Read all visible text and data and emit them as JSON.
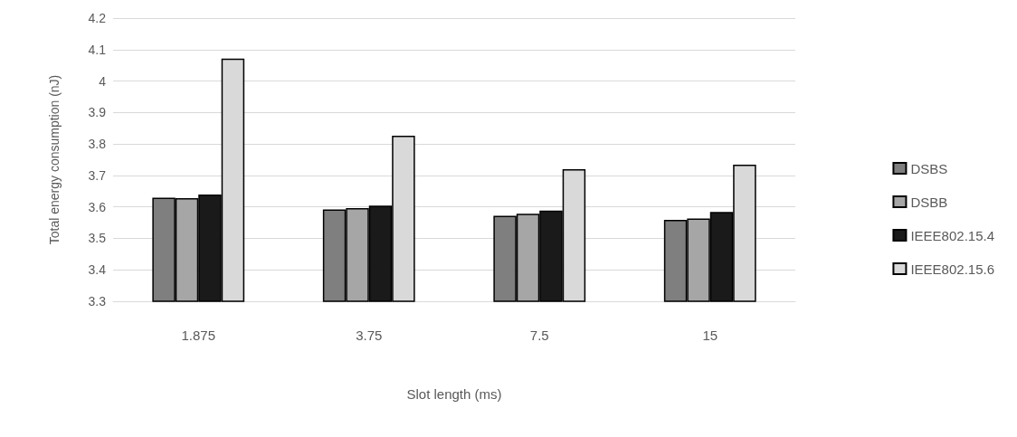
{
  "chart_data": {
    "type": "bar",
    "xlabel": "Slot length (ms)",
    "ylabel": "Total energy consumption (nJ)",
    "categories": [
      "1.875",
      "3.75",
      "7.5",
      "15"
    ],
    "series": [
      {
        "name": "DSBS",
        "color": "#7f7f7f",
        "values": [
          3.629,
          3.592,
          3.572,
          3.559
        ]
      },
      {
        "name": "DSBB",
        "color": "#a6a6a6",
        "values": [
          3.628,
          3.596,
          3.578,
          3.563
        ]
      },
      {
        "name": "IEEE802.15.4",
        "color": "#1a1a1a",
        "values": [
          3.639,
          3.604,
          3.588,
          3.584
        ]
      },
      {
        "name": "IEEE802.15.6",
        "color": "#d9d9d9",
        "values": [
          4.071,
          3.826,
          3.72,
          3.734
        ]
      }
    ],
    "ylim": [
      3.3,
      4.2
    ],
    "yticks": [
      3.3,
      3.4,
      3.5,
      3.6,
      3.7,
      3.8,
      3.9,
      4,
      4.1,
      4.2
    ],
    "grid": "y",
    "legend": "right"
  }
}
